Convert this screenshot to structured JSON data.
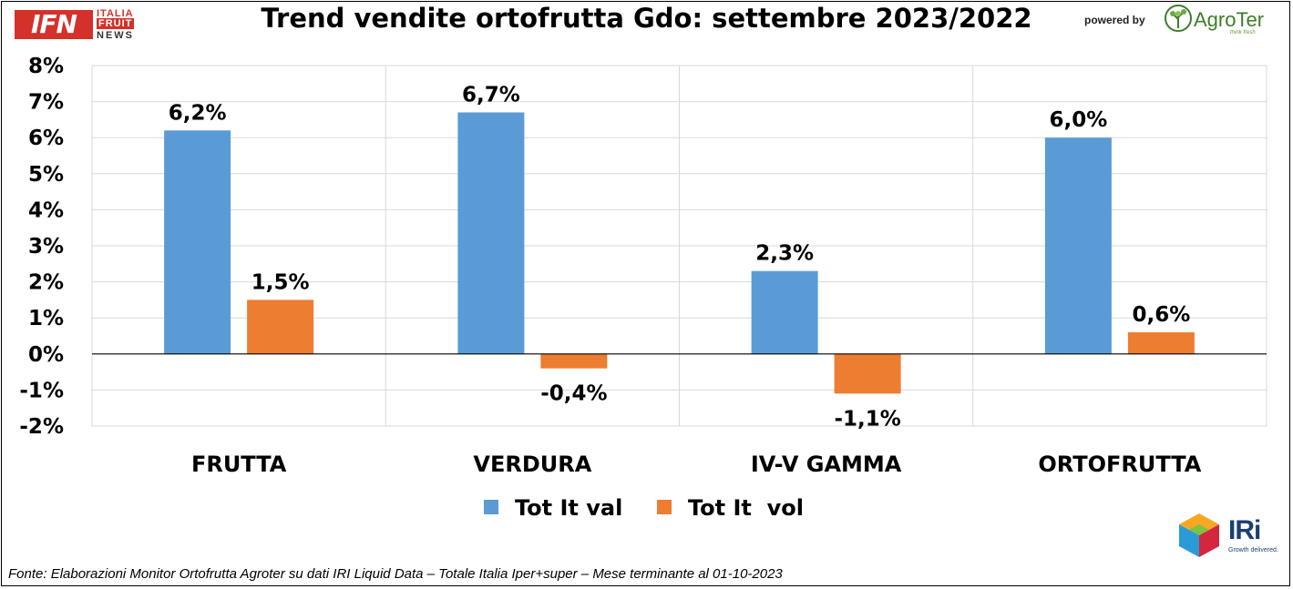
{
  "header": {
    "logo_ifn_main": "IFN",
    "logo_ifn_line1": "ITALIA",
    "logo_ifn_line2": "FRUIT",
    "logo_ifn_line3": "NEWS",
    "title": "Trend vendite ortofrutta Gdo: settembre 2023/2022",
    "powered_by": "powered by",
    "agroter_name": "AgroTer",
    "agroter_tagline": "think fresh"
  },
  "chart_data": {
    "type": "bar",
    "title": "Trend vendite ortofrutta Gdo: settembre 2023/2022",
    "categories": [
      "FRUTTA",
      "VERDURA",
      "IV-V GAMMA",
      "ORTOFRUTTA"
    ],
    "series": [
      {
        "name": "Tot It val",
        "values": [
          6.2,
          6.7,
          2.3,
          6.0
        ],
        "labels": [
          "6,2%",
          "6,7%",
          "2,3%",
          "6,0%"
        ],
        "color": "#5b9bd5"
      },
      {
        "name": "Tot It  vol",
        "values": [
          1.5,
          -0.4,
          -1.1,
          0.6
        ],
        "labels": [
          "1,5%",
          "-0,4%",
          "-1,1%",
          "0,6%"
        ],
        "color": "#ed7d31"
      }
    ],
    "ylim": [
      -2,
      8
    ],
    "yticks": [
      "8%",
      "7%",
      "6%",
      "5%",
      "4%",
      "3%",
      "2%",
      "1%",
      "0%",
      "-1%",
      "-2%"
    ],
    "ytick_values": [
      8,
      7,
      6,
      5,
      4,
      3,
      2,
      1,
      0,
      -1,
      -2
    ],
    "grid": true,
    "legend_position": "bottom"
  },
  "logos": {
    "iri_name": "IRi",
    "iri_tagline": "Growth delivered."
  },
  "footer": {
    "source": "Fonte: Elaborazioni Monitor Ortofrutta Agroter su dati IRI Liquid Data – Totale Italia Iper+super – Mese terminante al 01-10-2023"
  }
}
